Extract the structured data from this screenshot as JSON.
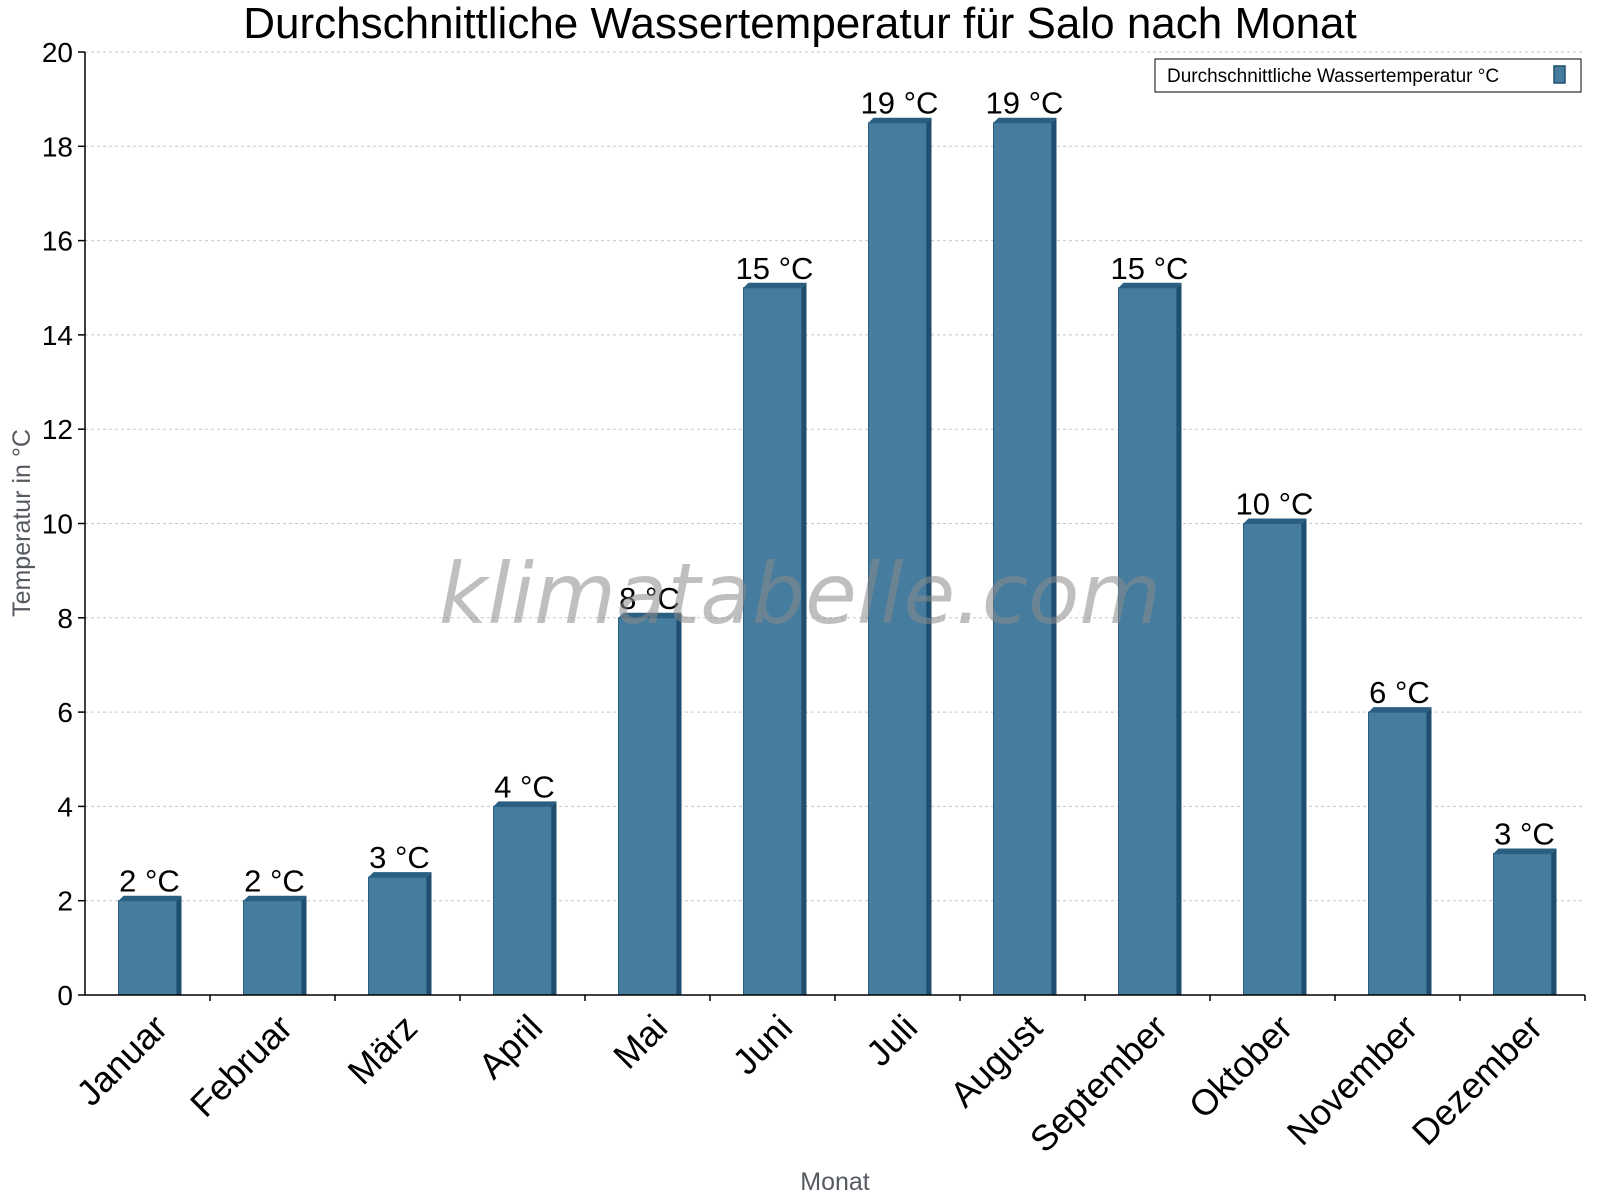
{
  "watermark": "klimatabelle.com",
  "legend": {
    "label": "Durchschnittliche Wassertemperatur °C"
  },
  "colors": {
    "bar": "#467c9e",
    "bar_side": "#1f4e6e",
    "bar_top": "#2a5f82",
    "grid": "#c8c8c8"
  },
  "chart_data": {
    "type": "bar",
    "title": "Durchschnittliche Wassertemperatur für Salo nach Monat",
    "xlabel": "Monat",
    "ylabel": "Temperatur in °C",
    "ylim": [
      0,
      20
    ],
    "yticks": [
      0,
      2,
      4,
      6,
      8,
      10,
      12,
      14,
      16,
      18,
      20
    ],
    "grid": true,
    "legend_position": "top-right",
    "categories": [
      "Januar",
      "Februar",
      "März",
      "April",
      "Mai",
      "Juni",
      "Juli",
      "August",
      "September",
      "Oktober",
      "November",
      "Dezember"
    ],
    "series": [
      {
        "name": "Durchschnittliche Wassertemperatur °C",
        "values": [
          2,
          2,
          2.5,
          4,
          8,
          15,
          18.5,
          18.5,
          15,
          10,
          6,
          3
        ],
        "labels": [
          "2 °C",
          "2 °C",
          "3 °C",
          "4 °C",
          "8 °C",
          "15 °C",
          "19 °C",
          "19 °C",
          "15 °C",
          "10 °C",
          "6 °C",
          "3 °C"
        ]
      }
    ]
  }
}
